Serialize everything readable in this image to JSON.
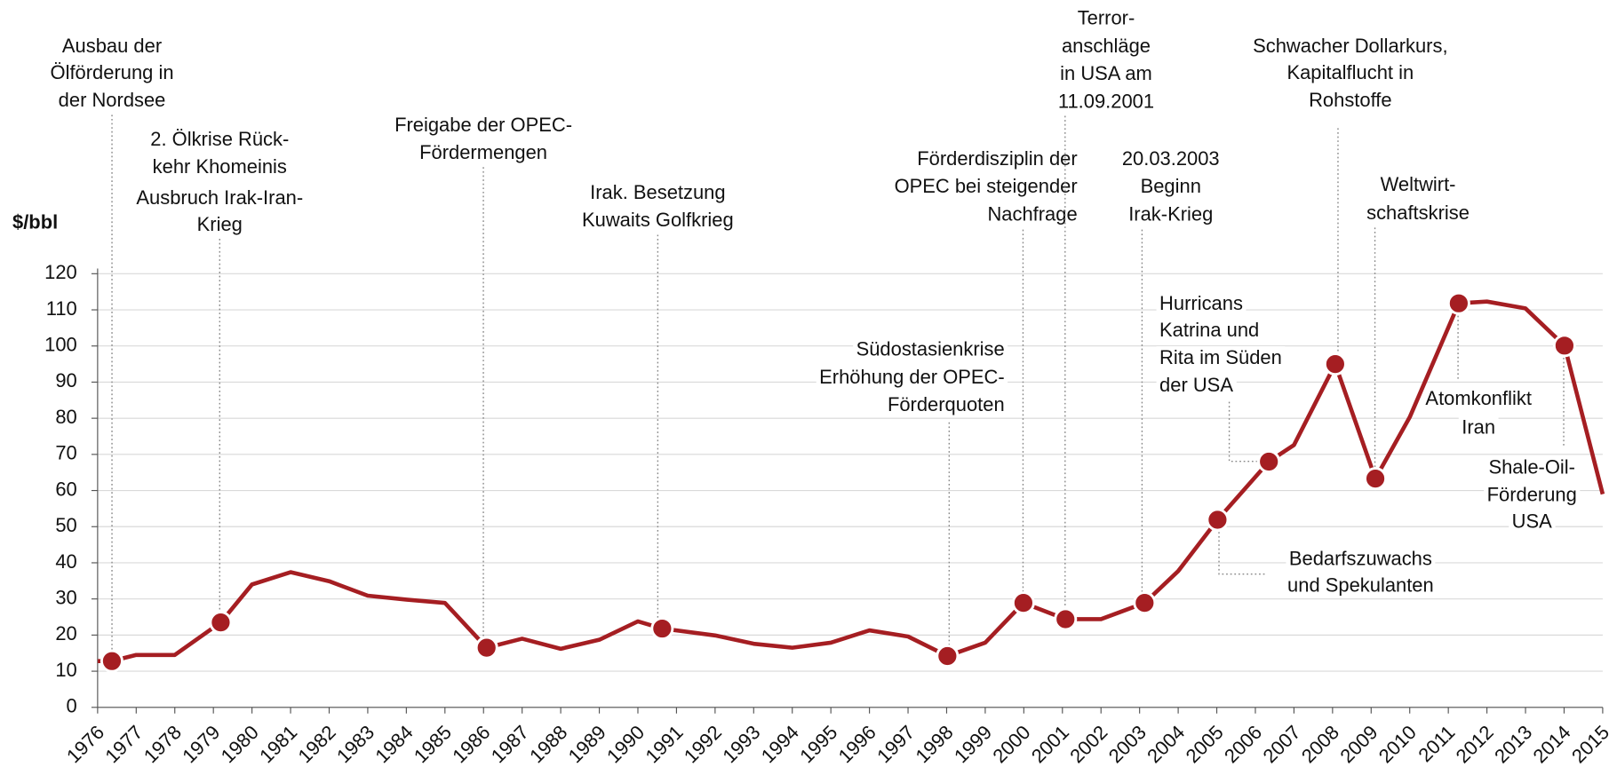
{
  "chart_data": {
    "type": "line",
    "y_axis_label": "$/bbl",
    "xlim": [
      1976,
      2015
    ],
    "xticks": [
      1976,
      1977,
      1978,
      1979,
      1980,
      1981,
      1982,
      1983,
      1984,
      1985,
      1986,
      1987,
      1988,
      1989,
      1990,
      1991,
      1992,
      1993,
      1994,
      1995,
      1996,
      1997,
      1998,
      1999,
      2000,
      2001,
      2002,
      2003,
      2004,
      2005,
      2006,
      2007,
      2008,
      2009,
      2010,
      2011,
      2012,
      2013,
      2014,
      2015
    ],
    "ylim": [
      0,
      120
    ],
    "yticks": [
      0,
      10,
      20,
      30,
      40,
      50,
      60,
      70,
      80,
      90,
      100,
      110,
      120
    ],
    "grid": true,
    "color": "#a51e22",
    "series": [
      {
        "color": "#a51e22",
        "x": [
          1976,
          1976.37,
          1977,
          1978,
          1979.19,
          1980,
          1981,
          1982,
          1983,
          1984,
          1985,
          1986.08,
          1987,
          1988,
          1989,
          1990,
          1990.63,
          1992,
          1993,
          1994,
          1995,
          1996,
          1997,
          1998.02,
          1999,
          1999.99,
          2001.08,
          2002,
          2003.13,
          2004,
          2005.02,
          2006.35,
          2007,
          2008.07,
          2009.11,
          2010,
          2011.27,
          2012,
          2013,
          2014.01,
          2015
        ],
        "values": [
          12.8,
          12.8,
          14.5,
          14.5,
          23.5,
          34,
          37.4,
          34.9,
          30.9,
          29.8,
          28.9,
          16.5,
          19,
          16.2,
          18.7,
          23.8,
          21.8,
          19.9,
          17.6,
          16.5,
          17.9,
          21.3,
          19.6,
          14.2,
          17.9,
          28.9,
          24.4,
          24.4,
          28.9,
          37.7,
          51.9,
          68,
          72.6,
          95,
          63.3,
          80.3,
          111.8,
          112.3,
          110.4,
          100.1,
          59
        ]
      }
    ],
    "highlights": {
      "x": [
        1976.37,
        1979.19,
        1986.08,
        1990.63,
        1998.02,
        1999.99,
        2001.08,
        2003.13,
        2005.02,
        2006.35,
        2008.07,
        2009.11,
        2011.27,
        2014.01
      ],
      "values": [
        12.8,
        23.5,
        16.5,
        21.8,
        14.2,
        28.9,
        24.4,
        28.9,
        51.9,
        68,
        95,
        63.3,
        111.8,
        100.1
      ]
    },
    "annotations": [
      {
        "lines": [
          "Ausbau der",
          "Ölförderung in",
          "der Nordsee"
        ]
      },
      {
        "lines": [
          "2. Ölkrise Rück-",
          "kehr Khomeinis",
          "Ausbruch Irak-Iran-",
          "Krieg"
        ]
      },
      {
        "lines": [
          "Freigabe der OPEC-",
          "Fördermengen"
        ]
      },
      {
        "lines": [
          "Irak. Besetzung",
          "Kuwaits Golfkrieg"
        ]
      },
      {
        "lines": [
          "Südostasienkrise",
          "Erhöhung der OPEC-",
          "Förderquoten"
        ]
      },
      {
        "lines": [
          "Förderdisziplin der",
          "OPEC bei steigender",
          "Nachfrage"
        ]
      },
      {
        "lines": [
          "Terror-",
          "anschläge",
          "in USA am",
          "11.09.2001"
        ]
      },
      {
        "lines": [
          "20.03.2003",
          "Beginn",
          "Irak-Krieg"
        ]
      },
      {
        "lines": [
          "Hurricans",
          "Katrina und",
          "Rita im Süden",
          "der USA"
        ]
      },
      {
        "lines": [
          "Bedarfszuwachs",
          "und Spekulanten"
        ]
      },
      {
        "lines": [
          "Schwacher Dollarkurs,",
          "Kapitalflucht in",
          "Rohstoffe"
        ]
      },
      {
        "lines": [
          "Weltwirt-",
          "schaftskrise"
        ]
      },
      {
        "lines": [
          "Atomkonflikt",
          "Iran"
        ]
      },
      {
        "lines": [
          "Shale-Oil-",
          "Förderung",
          "USA"
        ]
      }
    ]
  }
}
